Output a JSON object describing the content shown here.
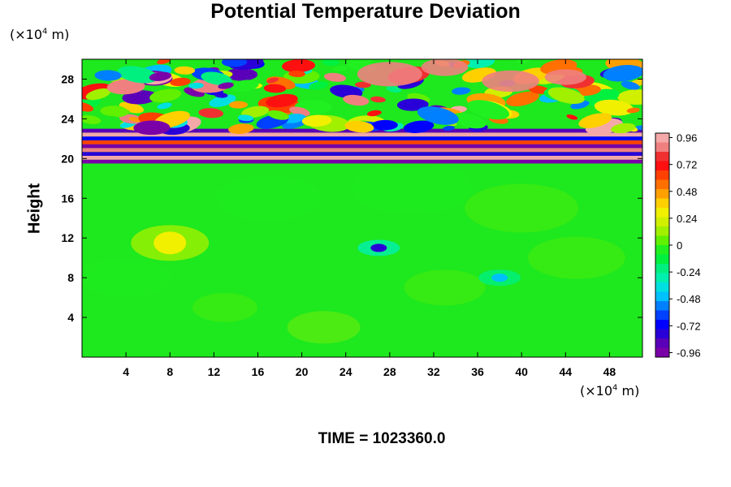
{
  "chart_data": {
    "type": "heatmap",
    "title": "Potential Temperature Deviation",
    "xlabel": "",
    "ylabel": "Height",
    "x_unit": "(×10⁴ m)",
    "y_unit": "(×10⁴ m)",
    "xlim": [
      0,
      51
    ],
    "ylim": [
      0,
      30
    ],
    "x_ticks": [
      4,
      8,
      12,
      16,
      20,
      24,
      28,
      32,
      36,
      40,
      44,
      48
    ],
    "y_ticks": [
      4,
      8,
      12,
      16,
      20,
      24,
      28
    ],
    "colorbar": {
      "ticks": [
        0.96,
        0.72,
        0.48,
        0.24,
        0,
        -0.24,
        -0.48,
        -0.72,
        -0.96
      ],
      "tick_labels": [
        "0.96",
        "0.72",
        "0.48",
        "0.24",
        "0",
        "-0.24",
        "-0.48",
        "-0.72",
        "-0.96"
      ],
      "range": [
        -1.0,
        1.0
      ],
      "colors": [
        "#7a00a8",
        "#5a00b8",
        "#2a00d8",
        "#0000ff",
        "#0040ff",
        "#0080ff",
        "#00c0ff",
        "#00e0e0",
        "#00f0b0",
        "#00f080",
        "#00f040",
        "#20f020",
        "#60f000",
        "#a0f000",
        "#d0f000",
        "#f0f000",
        "#ffd000",
        "#ffa000",
        "#ff7000",
        "#ff4000",
        "#ff1010",
        "#f03030",
        "#f08080",
        "#f4a8a8"
      ]
    },
    "features": [
      {
        "label": "stratospheric wave band",
        "y_range": [
          19.5,
          30
        ],
        "value_range": [
          -1.0,
          1.0
        ]
      },
      {
        "label": "positive anomaly",
        "x": 8,
        "y": 11.5,
        "value": 0.3
      },
      {
        "label": "negative anomaly",
        "x": 27,
        "y": 11,
        "value": -0.8
      },
      {
        "label": "negative streak",
        "x": 38,
        "y": 8,
        "value": -0.5
      }
    ]
  },
  "footer": {
    "time_text": "TIME = 1023360.0"
  },
  "colors": {
    "background": "#ffffff",
    "field_base": "#1ee81e"
  }
}
